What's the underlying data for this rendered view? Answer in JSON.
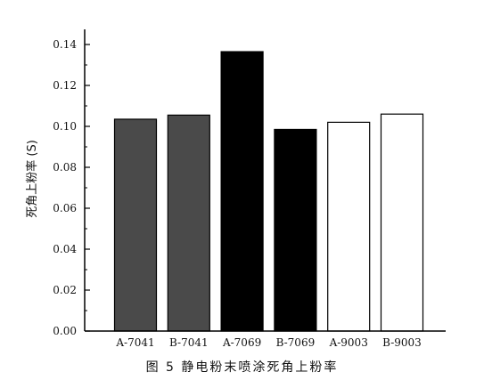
{
  "chart_data": {
    "type": "bar",
    "title": "",
    "xlabel": "",
    "ylabel": "死角上粉率 (S)",
    "ylim": [
      0,
      0.14
    ],
    "yticks": [
      0.0,
      0.02,
      0.04,
      0.06,
      0.08,
      0.1,
      0.12,
      0.14
    ],
    "ytick_labels": [
      "0.00",
      "0.02",
      "0.04",
      "0.06",
      "0.08",
      "0.10",
      "0.12",
      "0.14"
    ],
    "categories": [
      "A-7041",
      "B-7041",
      "A-7069",
      "B-7069",
      "A-9003",
      "B-9003"
    ],
    "values": [
      0.1035,
      0.1055,
      0.1365,
      0.0985,
      0.102,
      0.106
    ],
    "bar_colors": [
      "#4a4a4a",
      "#4a4a4a",
      "#000000",
      "#000000",
      "#ffffff",
      "#ffffff"
    ],
    "grid": false,
    "legend": "none"
  },
  "caption": "图 5 静电粉末喷涂死角上粉率"
}
